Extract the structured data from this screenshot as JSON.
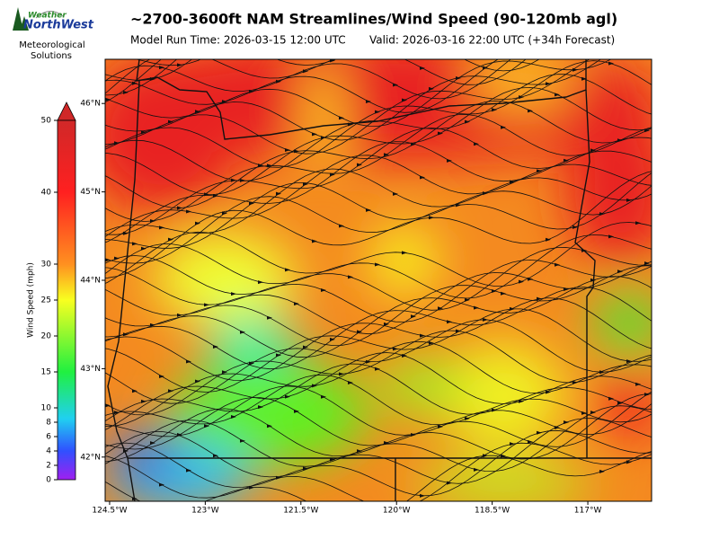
{
  "header": {
    "title": "~2700-3600ft NAM Streamlines/Wind Speed (90-120mb agl)",
    "model_run": "Model Run Time: 2026-03-15 12:00 UTC",
    "valid": "Valid: 2026-03-16 22:00 UTC  (+34h Forecast)"
  },
  "logo": {
    "top": "Weather",
    "name": "NorthWest",
    "line1": "Meteorological",
    "line2": "Solutions"
  },
  "colorbar": {
    "label": "Wind Speed (mph)",
    "lim": [
      0,
      50
    ],
    "ticks": [
      0,
      2,
      4,
      6,
      8,
      10,
      15,
      20,
      25,
      30,
      40,
      50
    ]
  },
  "map": {
    "xlim": [
      -124.57,
      -116.0
    ],
    "ylim": [
      41.5,
      46.5
    ],
    "xticks": [
      {
        "value": -124.5,
        "label": "124.5°W"
      },
      {
        "value": -123,
        "label": "123°W"
      },
      {
        "value": -121.5,
        "label": "121.5°W"
      },
      {
        "value": -120,
        "label": "120°W"
      },
      {
        "value": -118.5,
        "label": "118.5°W"
      },
      {
        "value": -117,
        "label": "117°W"
      }
    ],
    "yticks": [
      {
        "value": 46,
        "label": "46°N"
      },
      {
        "value": 45,
        "label": "45°N"
      },
      {
        "value": 44,
        "label": "44°N"
      },
      {
        "value": 43,
        "label": "43°N"
      },
      {
        "value": 42,
        "label": "42°N"
      }
    ]
  }
}
